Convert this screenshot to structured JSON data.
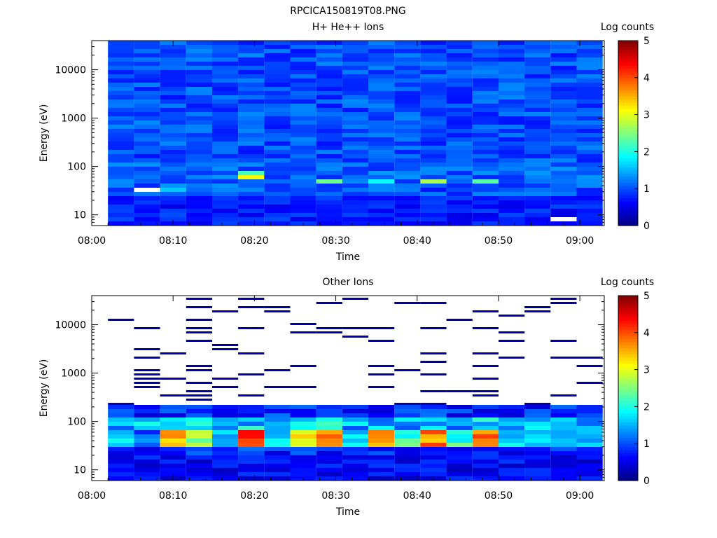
{
  "title": "RPCICA150819T08.PNG",
  "chart_data": [
    {
      "type": "heatmap",
      "title": "H+ He++ Ions",
      "xlabel": "Time",
      "ylabel": "Energy (eV)",
      "x_tick_labels": [
        "08:00",
        "08:10",
        "08:20",
        "08:30",
        "08:40",
        "08:50",
        "09:00"
      ],
      "y_tick_labels": [
        "10",
        "100",
        "1000",
        "10000"
      ],
      "y_scale": "log",
      "ylim": [
        6,
        40000
      ],
      "xlim_minutes": [
        0,
        63
      ],
      "colorbar": {
        "label": "Log counts",
        "range": [
          0,
          5
        ],
        "tick_labels": [
          "0",
          "1",
          "2",
          "3",
          "4",
          "5"
        ],
        "colormap": "jet"
      },
      "time_bins_start_minutes": [
        2.0,
        5.2,
        8.4,
        11.6,
        14.8,
        18.0,
        21.2,
        24.4,
        27.6,
        30.8,
        34.0,
        37.2,
        40.4,
        43.6,
        46.8,
        50.0,
        53.2,
        56.4,
        59.6
      ],
      "features": [
        {
          "time_bin": 1,
          "energy_eV": 30,
          "value": null
        },
        {
          "time_bin": 2,
          "energy_eV": 35,
          "value": 1.6
        },
        {
          "time_bin": 5,
          "energy_eV": 55,
          "value": 3.1
        },
        {
          "time_bin": 5,
          "energy_eV": 80,
          "value": 2.2
        },
        {
          "time_bin": 8,
          "energy_eV": 45,
          "value": 2.4
        },
        {
          "time_bin": 10,
          "energy_eV": 45,
          "value": 1.9
        },
        {
          "time_bin": 12,
          "energy_eV": 45,
          "value": 2.7
        },
        {
          "time_bin": 14,
          "energy_eV": 45,
          "value": 2.3
        },
        {
          "time_bin": 17,
          "energy_eV": 8,
          "value": null
        }
      ]
    },
    {
      "type": "heatmap",
      "title": "Other Ions",
      "xlabel": "Time",
      "ylabel": "Energy (eV)",
      "x_tick_labels": [
        "08:00",
        "08:10",
        "08:20",
        "08:30",
        "08:40",
        "08:50",
        "09:00"
      ],
      "y_tick_labels": [
        "10",
        "100",
        "1000",
        "10000"
      ],
      "y_scale": "log",
      "ylim": [
        6,
        40000
      ],
      "xlim_minutes": [
        0,
        63
      ],
      "colorbar": {
        "label": "Log counts",
        "range": [
          0,
          5
        ],
        "tick_labels": [
          "0",
          "1",
          "2",
          "3",
          "4",
          "5"
        ],
        "colormap": "jet"
      },
      "time_bins_start_minutes": [
        2.0,
        5.2,
        8.4,
        11.6,
        14.8,
        18.0,
        21.2,
        24.4,
        27.6,
        30.8,
        34.0,
        37.2,
        40.4,
        43.6,
        46.8,
        50.0,
        53.2,
        56.4,
        59.6
      ],
      "peak_values_at_35_60_eV": [
        2.2,
        1.5,
        3.8,
        3.0,
        1.8,
        4.6,
        2.0,
        3.6,
        4.2,
        2.2,
        4.0,
        2.6,
        4.1,
        2.5,
        4.3,
        2.0,
        2.3,
        2.1,
        1.9
      ]
    }
  ]
}
